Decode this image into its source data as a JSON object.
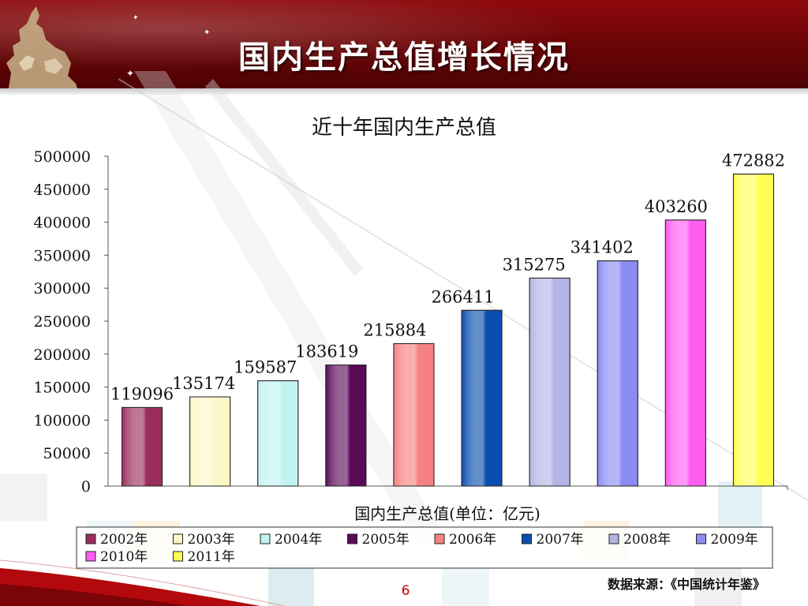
{
  "slide": {
    "title": "国内生产总值增长情况",
    "source": "数据来源：《中国统计年鉴》",
    "page_number": "6"
  },
  "colors": {
    "banner": "#6d0507",
    "title_text": "#ffffff",
    "page_number": "#c00000"
  },
  "chart_data": {
    "type": "bar",
    "title": "近十年国内生产总值",
    "xlabel": "国内生产总值(单位：亿元)",
    "ylabel": "",
    "ylim": [
      0,
      500000
    ],
    "y_ticks": [
      "0",
      "50000",
      "100000",
      "150000",
      "200000",
      "250000",
      "300000",
      "350000",
      "400000",
      "450000",
      "500000"
    ],
    "categories": [
      "2002年",
      "2003年",
      "2004年",
      "2005年",
      "2006年",
      "2007年",
      "2008年",
      "2009年",
      "2010年",
      "2011年"
    ],
    "values": [
      119096,
      135174,
      159587,
      183619,
      215884,
      266411,
      315275,
      341402,
      403260,
      472882
    ],
    "data_labels": [
      "119096",
      "135174",
      "159587",
      "183619",
      "215884",
      "266411",
      "315275",
      "341402",
      "403260",
      "472882"
    ],
    "bar_colors": [
      "#9b2d5c",
      "#fbf7c6",
      "#c2f3f3",
      "#5b0a57",
      "#f58181",
      "#0a4eb0",
      "#b3b3e6",
      "#8b8bf5",
      "#ff5cf0",
      "#ffff55"
    ],
    "legend_position": "bottom",
    "grid": false
  }
}
